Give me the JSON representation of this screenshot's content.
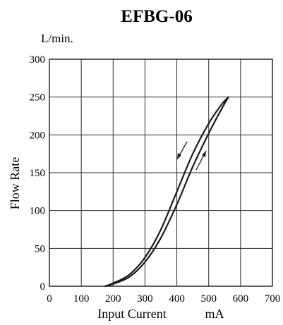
{
  "chart_data": {
    "type": "line",
    "title": "EFBG-06",
    "y_unit_label": "L/min.",
    "xlabel": "Input Current",
    "xunit": "mA",
    "ylabel": "Flow Rate",
    "xlim": [
      0,
      700
    ],
    "ylim": [
      0,
      300
    ],
    "xticks": [
      "0",
      "100",
      "200",
      "300",
      "400",
      "500",
      "600",
      "700"
    ],
    "yticks": [
      "0",
      "50",
      "100",
      "150",
      "200",
      "250",
      "300"
    ],
    "grid": true,
    "series": [
      {
        "direction": "decreasing",
        "x": [
          175,
          200,
          250,
          300,
          350,
          400,
          450,
          500,
          540,
          562
        ],
        "y": [
          0,
          4,
          15,
          38,
          75,
          125,
          175,
          215,
          240,
          250
        ]
      },
      {
        "direction": "increasing",
        "x": [
          175,
          200,
          250,
          300,
          350,
          400,
          450,
          500,
          540,
          562
        ],
        "y": [
          0,
          3,
          12,
          32,
          64,
          108,
          158,
          202,
          234,
          250
        ]
      }
    ]
  }
}
